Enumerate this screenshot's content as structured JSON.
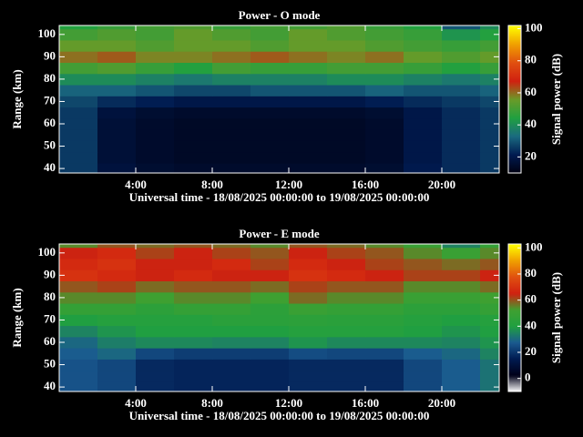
{
  "chart_data": [
    {
      "type": "heatmap",
      "title": "Power - O mode",
      "xlabel": "Universal time - 18/08/2025 00:00:00 to 19/08/2025 00:00:00",
      "ylabel": "Range (km)",
      "xbins": [
        0,
        2,
        4,
        6,
        8,
        10,
        12,
        14,
        16,
        18,
        20,
        22,
        24
      ],
      "ybins": [
        37.5,
        42.5,
        47.5,
        52.5,
        57.5,
        62.5,
        67.5,
        72.5,
        77.5,
        82.5,
        87.5,
        92.5,
        97.5,
        102.5,
        107.5
      ],
      "values": [
        [
          26,
          18,
          16,
          15,
          15,
          15,
          15,
          15,
          16,
          21,
          24,
          26
        ],
        [
          26,
          17,
          15,
          14,
          14,
          14,
          14,
          14,
          15,
          20,
          24,
          26
        ],
        [
          26,
          17,
          15,
          14,
          14,
          14,
          14,
          14,
          15,
          20,
          24,
          26
        ],
        [
          26,
          17,
          15,
          14,
          14,
          14,
          14,
          14,
          15,
          20,
          24,
          26
        ],
        [
          26,
          17,
          15,
          14,
          14,
          14,
          14,
          14,
          15,
          20,
          24,
          26
        ],
        [
          26,
          18,
          16,
          15,
          15,
          15,
          15,
          15,
          16,
          20,
          24,
          26
        ],
        [
          28,
          24,
          22,
          20,
          20,
          20,
          20,
          20,
          22,
          24,
          26,
          28
        ],
        [
          32,
          32,
          30,
          28,
          28,
          30,
          30,
          30,
          32,
          30,
          30,
          32
        ],
        [
          40,
          40,
          38,
          36,
          38,
          38,
          38,
          40,
          40,
          38,
          36,
          38
        ],
        [
          50,
          52,
          48,
          45,
          50,
          48,
          48,
          50,
          50,
          48,
          45,
          48
        ],
        [
          60,
          62,
          58,
          58,
          60,
          62,
          60,
          58,
          60,
          55,
          52,
          55
        ],
        [
          55,
          55,
          52,
          55,
          55,
          52,
          55,
          55,
          52,
          50,
          48,
          50
        ],
        [
          50,
          52,
          50,
          55,
          52,
          50,
          55,
          52,
          50,
          48,
          42,
          45
        ],
        [
          45,
          48,
          50,
          52,
          48,
          50,
          50,
          52,
          48,
          45,
          30,
          40
        ]
      ],
      "xlim": [
        0,
        23
      ],
      "ylim": [
        38,
        104
      ],
      "xticks": [
        {
          "value": 4,
          "label": "4:00"
        },
        {
          "value": 8,
          "label": "8:00"
        },
        {
          "value": 12,
          "label": "12:00"
        },
        {
          "value": 16,
          "label": "16:00"
        },
        {
          "value": 20,
          "label": "20:00"
        }
      ],
      "yticks": [
        40,
        50,
        60,
        70,
        80,
        90,
        100
      ],
      "colorbar": {
        "label": "Signal power (dB)",
        "lim": [
          10,
          102
        ],
        "ticks": [
          20,
          40,
          60,
          80,
          100
        ],
        "colors": [
          "#000010",
          "#001a50",
          "#1a6a80",
          "#20a040",
          "#6a9a28",
          "#d02010",
          "#e05010",
          "#f0a000",
          "#ffff00"
        ]
      }
    },
    {
      "type": "heatmap",
      "title": "Power - E mode",
      "xlabel": "Universal time - 18/08/2025 00:00:00 to 19/08/2025 00:00:00",
      "ylabel": "Range (km)",
      "xbins": [
        0,
        2,
        4,
        6,
        8,
        10,
        12,
        14,
        16,
        18,
        20,
        22,
        24
      ],
      "ybins": [
        37.5,
        42.5,
        47.5,
        52.5,
        57.5,
        62.5,
        67.5,
        72.5,
        77.5,
        82.5,
        87.5,
        92.5,
        97.5,
        102.5,
        107.5
      ],
      "values": [
        [
          26,
          24,
          18,
          17,
          17,
          17,
          18,
          18,
          18,
          24,
          28,
          32
        ],
        [
          26,
          24,
          18,
          17,
          17,
          17,
          18,
          18,
          18,
          24,
          28,
          32
        ],
        [
          26,
          24,
          18,
          17,
          17,
          17,
          18,
          18,
          18,
          24,
          28,
          32
        ],
        [
          28,
          30,
          24,
          22,
          22,
          22,
          25,
          24,
          24,
          28,
          30,
          35
        ],
        [
          30,
          34,
          36,
          36,
          35,
          35,
          38,
          36,
          36,
          36,
          35,
          38
        ],
        [
          35,
          38,
          40,
          40,
          40,
          40,
          42,
          42,
          42,
          40,
          38,
          40
        ],
        [
          40,
          42,
          42,
          42,
          44,
          44,
          45,
          44,
          44,
          42,
          40,
          42
        ],
        [
          48,
          48,
          45,
          48,
          48,
          45,
          50,
          48,
          48,
          45,
          45,
          48
        ],
        [
          55,
          55,
          52,
          55,
          55,
          52,
          58,
          55,
          55,
          50,
          50,
          52
        ],
        [
          60,
          62,
          58,
          60,
          60,
          58,
          62,
          60,
          60,
          55,
          55,
          58
        ],
        [
          70,
          68,
          65,
          68,
          65,
          65,
          70,
          68,
          65,
          62,
          62,
          65
        ],
        [
          68,
          70,
          65,
          65,
          68,
          62,
          68,
          65,
          62,
          60,
          58,
          60
        ],
        [
          65,
          68,
          62,
          65,
          62,
          60,
          65,
          62,
          60,
          55,
          50,
          55
        ],
        [
          55,
          60,
          58,
          60,
          58,
          55,
          60,
          58,
          55,
          50,
          35,
          48
        ]
      ],
      "xlim": [
        0,
        23
      ],
      "ylim": [
        38,
        104
      ],
      "xticks": [
        {
          "value": 4,
          "label": "4:00"
        },
        {
          "value": 8,
          "label": "8:00"
        },
        {
          "value": 12,
          "label": "12:00"
        },
        {
          "value": 16,
          "label": "16:00"
        },
        {
          "value": 20,
          "label": "20:00"
        }
      ],
      "yticks": [
        40,
        50,
        60,
        70,
        80,
        90,
        100
      ],
      "colorbar": {
        "label": "Signal power (dB)",
        "lim": [
          -10,
          103
        ],
        "ticks": [
          0,
          20,
          40,
          60,
          80,
          100
        ],
        "colors": [
          "#ffffff",
          "#000018",
          "#001a50",
          "#1a5a90",
          "#20a040",
          "#40a030",
          "#d02010",
          "#e05010",
          "#f0a000",
          "#ffff00"
        ]
      }
    }
  ]
}
